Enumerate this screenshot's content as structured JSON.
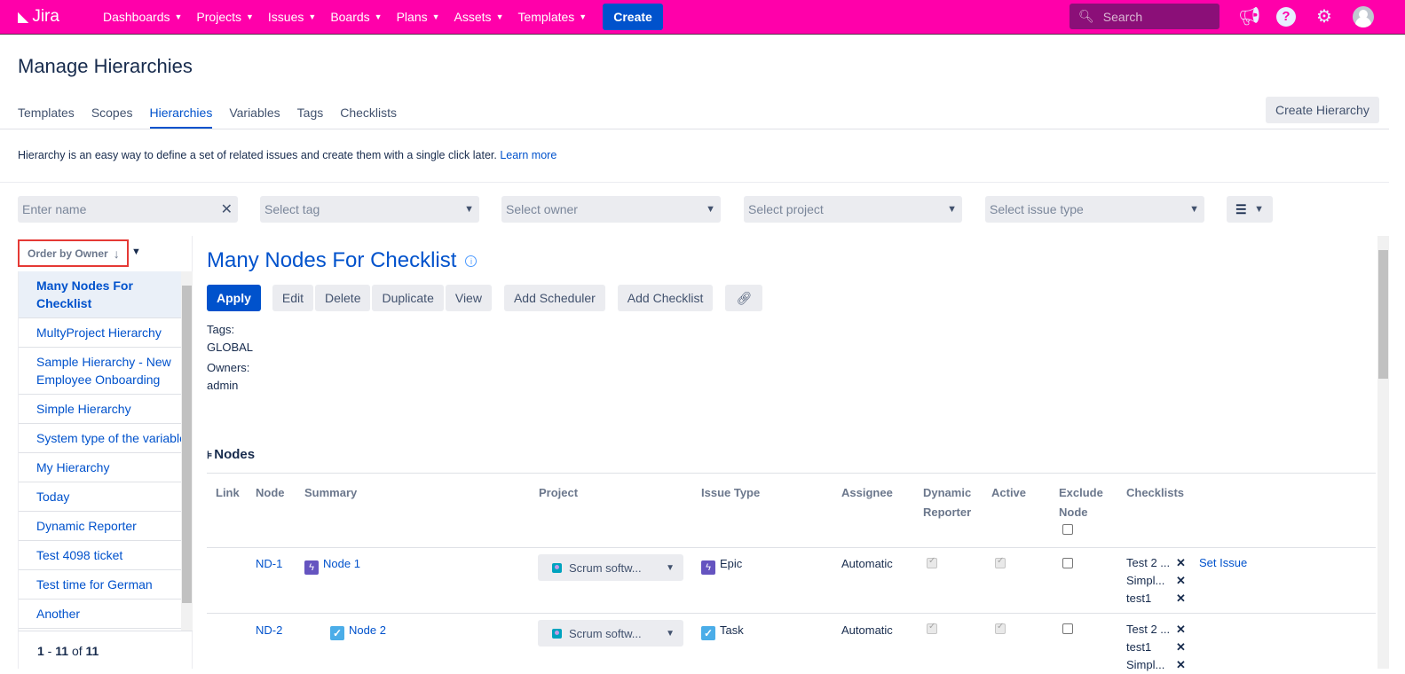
{
  "nav": {
    "logo": "Jira",
    "items": [
      "Dashboards",
      "Projects",
      "Issues",
      "Boards",
      "Plans",
      "Assets",
      "Templates"
    ],
    "create": "Create",
    "search_placeholder": "Search",
    "brand_color": "#ff00aa"
  },
  "page": {
    "title": "Manage Hierarchies",
    "tabs": [
      "Templates",
      "Scopes",
      "Hierarchies",
      "Variables",
      "Tags",
      "Checklists"
    ],
    "active_tab": "Hierarchies",
    "create_hierarchy": "Create Hierarchy",
    "description": "Hierarchy is an easy way to define a set of related issues and create them with a single click later.",
    "learn_more": "Learn more"
  },
  "filters": {
    "name_placeholder": "Enter name",
    "tag": "Select tag",
    "owner": "Select owner",
    "project": "Select project",
    "issue_type": "Select issue type"
  },
  "sidebar": {
    "order_label": "Order by Owner",
    "items": [
      "Many Nodes For Checklist",
      "MultyProject Hierarchy",
      "Sample Hierarchy - New Employee Onboarding",
      "Simple Hierarchy",
      "System type of the variable",
      "My Hierarchy",
      "Today",
      "Dynamic Reporter",
      "Test 4098 ticket",
      "Test time for German",
      "Another"
    ],
    "pager": {
      "from": "1",
      "sep": " - ",
      "to": "11",
      "of": " of ",
      "total": "11"
    }
  },
  "detail": {
    "title": "Many Nodes For Checklist",
    "actions": {
      "apply": "Apply",
      "edit": "Edit",
      "delete": "Delete",
      "duplicate": "Duplicate",
      "view": "View",
      "add_scheduler": "Add Scheduler",
      "add_checklist": "Add Checklist"
    },
    "tags_label": "Tags:",
    "tags": "GLOBAL",
    "owners_label": "Owners:",
    "owners": "admin",
    "nodes_label": "Nodes"
  },
  "table": {
    "headers": {
      "link": "Link",
      "node": "Node",
      "summary": "Summary",
      "project": "Project",
      "issue_type": "Issue Type",
      "assignee": "Assignee",
      "dynamic_reporter": "Dynamic Reporter",
      "active": "Active",
      "exclude_node": "Exclude Node",
      "checklists": "Checklists"
    },
    "rows": [
      {
        "node": "ND-1",
        "summary": "Node 1",
        "project": "Scrum softw...",
        "issue_type": "Epic",
        "assignee": "Automatic",
        "dynamic_reporter": true,
        "active": true,
        "exclude": false,
        "checklists": [
          "Test 2 ...",
          "Simpl...",
          "test1"
        ],
        "set_issue": "Set Issue"
      },
      {
        "node": "ND-2",
        "summary": "Node 2",
        "project": "Scrum softw...",
        "issue_type": "Task",
        "assignee": "Automatic",
        "dynamic_reporter": true,
        "active": true,
        "exclude": false,
        "checklists": [
          "Test 2 ...",
          "test1",
          "Simpl..."
        ]
      }
    ]
  }
}
